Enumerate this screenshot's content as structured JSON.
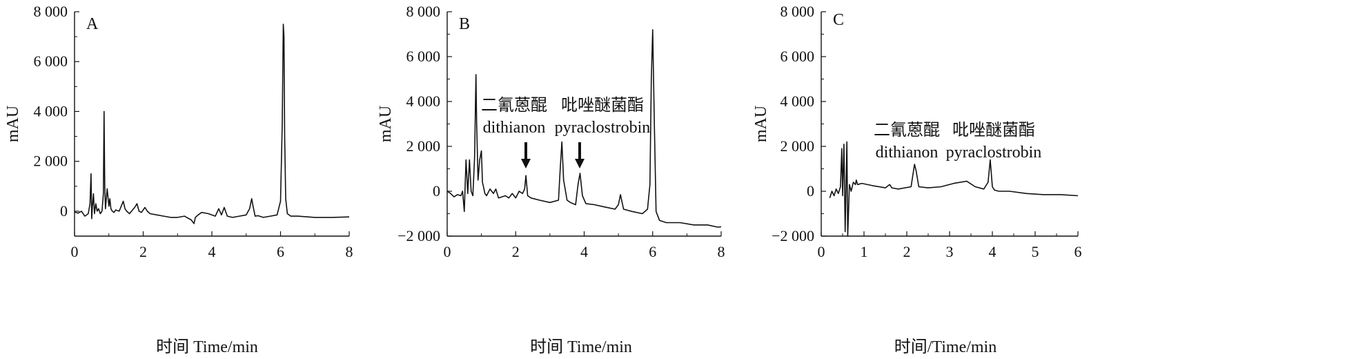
{
  "chart_data": [
    {
      "type": "line",
      "panel_label": "A",
      "xlabel": "时间 Time/min",
      "ylabel": "mAU",
      "xlim": [
        0,
        8
      ],
      "ylim": [
        -1000,
        8000
      ],
      "xticks": [
        0,
        2,
        4,
        6,
        8
      ],
      "xtick_labels": [
        "0",
        "2",
        "4",
        "6",
        "8"
      ],
      "yticks": [
        0,
        2000,
        4000,
        6000,
        8000
      ],
      "ytick_labels": [
        "0",
        "2 000",
        "4 000",
        "6 000",
        "8 000"
      ],
      "annotations": [],
      "series": [
        {
          "color": "#111111",
          "x": [
            0,
            0.1,
            0.2,
            0.3,
            0.4,
            0.45,
            0.48,
            0.5,
            0.52,
            0.55,
            0.58,
            0.62,
            0.66,
            0.7,
            0.75,
            0.8,
            0.84,
            0.86,
            0.88,
            0.9,
            0.92,
            0.95,
            1.0,
            1.03,
            1.06,
            1.1,
            1.15,
            1.2,
            1.3,
            1.42,
            1.47,
            1.52,
            1.6,
            1.75,
            1.82,
            1.88,
            1.95,
            2.05,
            2.12,
            2.2,
            2.4,
            2.6,
            2.8,
            3.0,
            3.2,
            3.4,
            3.48,
            3.52,
            3.6,
            3.7,
            3.9,
            4.1,
            4.2,
            4.28,
            4.36,
            4.45,
            4.6,
            4.8,
            5.0,
            5.1,
            5.16,
            5.2,
            5.26,
            5.34,
            5.5,
            5.7,
            5.9,
            6.0,
            6.05,
            6.08,
            6.1,
            6.12,
            6.15,
            6.2,
            6.3,
            6.5,
            7.0,
            7.5,
            8.0
          ],
          "y": [
            -30,
            -80,
            0,
            -200,
            -100,
            300,
            1500,
            -300,
            200,
            700,
            -100,
            300,
            0,
            100,
            -100,
            0,
            700,
            4000,
            1000,
            100,
            400,
            900,
            200,
            500,
            100,
            0,
            -50,
            50,
            0,
            400,
            100,
            0,
            -100,
            150,
            300,
            0,
            -50,
            150,
            0,
            -100,
            -150,
            -200,
            -250,
            -250,
            -200,
            -350,
            -500,
            -250,
            -150,
            -50,
            -100,
            -200,
            100,
            -150,
            150,
            -200,
            -250,
            -200,
            -150,
            100,
            500,
            200,
            -200,
            -180,
            -250,
            -200,
            -150,
            400,
            3500,
            7500,
            7000,
            3000,
            500,
            -100,
            -200,
            -200,
            -250,
            -250,
            -230
          ]
        }
      ]
    },
    {
      "type": "line",
      "panel_label": "B",
      "xlabel": "时间 Time/min",
      "ylabel": "mAU",
      "xlim": [
        0,
        8
      ],
      "ylim": [
        -2000,
        8000
      ],
      "xticks": [
        0,
        2,
        4,
        6,
        8
      ],
      "xtick_labels": [
        "0",
        "2",
        "4",
        "6",
        "8"
      ],
      "yticks": [
        -2000,
        0,
        2000,
        4000,
        6000,
        8000
      ],
      "ytick_labels": [
        "−2 000",
        "0",
        "2 000",
        "4 000",
        "6 000",
        "8 000"
      ],
      "annotations": [
        {
          "text_cn": "二氰蒽醌",
          "text_en": "dithianon",
          "x": 2.3,
          "y": 900
        },
        {
          "text_cn": "吡唑醚菌酯",
          "text_en": "pyraclostrobin",
          "x": 3.9,
          "y": 1100
        }
      ],
      "series": [
        {
          "color": "#111111",
          "x": [
            0,
            0.1,
            0.2,
            0.3,
            0.4,
            0.45,
            0.5,
            0.55,
            0.6,
            0.65,
            0.7,
            0.75,
            0.8,
            0.84,
            0.86,
            0.9,
            0.95,
            1.0,
            1.03,
            1.06,
            1.1,
            1.15,
            1.25,
            1.35,
            1.42,
            1.5,
            1.7,
            1.8,
            1.9,
            2.0,
            2.1,
            2.2,
            2.26,
            2.3,
            2.35,
            2.45,
            2.7,
            3.0,
            3.25,
            3.3,
            3.35,
            3.4,
            3.5,
            3.6,
            3.75,
            3.82,
            3.88,
            3.95,
            4.05,
            4.3,
            4.6,
            4.9,
            5.0,
            5.06,
            5.15,
            5.4,
            5.7,
            5.85,
            5.92,
            5.96,
            6.0,
            6.05,
            6.1,
            6.2,
            6.4,
            6.8,
            7.2,
            7.6,
            7.9,
            8.0
          ],
          "y": [
            0,
            -100,
            -250,
            -150,
            -200,
            0,
            -900,
            1400,
            -100,
            1400,
            0,
            -200,
            1500,
            5200,
            3000,
            500,
            1400,
            1800,
            400,
            200,
            -100,
            -200,
            100,
            -100,
            100,
            -300,
            -200,
            -300,
            -100,
            -300,
            0,
            -100,
            100,
            700,
            -200,
            -300,
            -400,
            -500,
            -400,
            1000,
            2200,
            500,
            -400,
            -500,
            -600,
            300,
            800,
            -200,
            -550,
            -600,
            -700,
            -800,
            -600,
            -150,
            -800,
            -900,
            -1000,
            -800,
            300,
            5000,
            7200,
            3000,
            -900,
            -1300,
            -1400,
            -1400,
            -1500,
            -1500,
            -1600,
            -1580
          ]
        }
      ]
    },
    {
      "type": "line",
      "panel_label": "C",
      "xlabel": "时间/Time/min",
      "ylabel": "mAU",
      "xlim": [
        0,
        6
      ],
      "ylim": [
        -2000,
        8000
      ],
      "xticks": [
        0,
        1,
        2,
        3,
        4,
        5,
        6
      ],
      "xtick_labels": [
        "0",
        "1",
        "2",
        "3",
        "4",
        "5",
        "6"
      ],
      "yticks": [
        -2000,
        0,
        2000,
        4000,
        6000,
        8000
      ],
      "ytick_labels": [
        "−2 000",
        "0",
        "2 000",
        "4 000",
        "6 000",
        "8 000"
      ],
      "annotations": [
        {
          "text_cn": "二氰蒽醌",
          "text_en": "dithianon",
          "x": 2.2,
          "y": 1200
        },
        {
          "text_cn": "吡唑醚菌酯",
          "text_en": "pyraclostrobin",
          "x": 4.0,
          "y": 1400
        }
      ],
      "series": [
        {
          "color": "#111111",
          "x": [
            0.2,
            0.25,
            0.3,
            0.35,
            0.4,
            0.45,
            0.48,
            0.5,
            0.53,
            0.56,
            0.6,
            0.62,
            0.66,
            0.7,
            0.75,
            0.8,
            0.82,
            0.85,
            0.95,
            1.2,
            1.5,
            1.6,
            1.65,
            1.8,
            2.1,
            2.18,
            2.22,
            2.28,
            2.5,
            2.8,
            3.1,
            3.4,
            3.6,
            3.8,
            3.9,
            3.95,
            4.0,
            4.05,
            4.15,
            4.4,
            4.8,
            5.2,
            5.6,
            6.0
          ],
          "y": [
            -300,
            0,
            -200,
            100,
            -100,
            200,
            1900,
            -200,
            2100,
            -1800,
            2200,
            -2000,
            300,
            0,
            400,
            300,
            500,
            300,
            350,
            250,
            150,
            300,
            150,
            100,
            200,
            1200,
            900,
            200,
            150,
            200,
            350,
            450,
            200,
            100,
            400,
            1400,
            200,
            50,
            0,
            0,
            -100,
            -150,
            -150,
            -200
          ]
        }
      ]
    }
  ]
}
